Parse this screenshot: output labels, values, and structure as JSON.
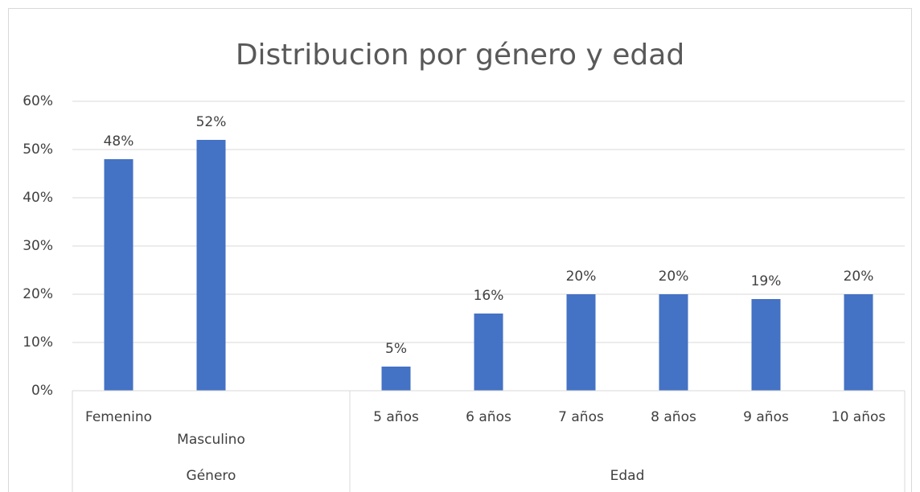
{
  "chart_data": {
    "type": "bar",
    "title": "Distribucion por género y edad",
    "categories": [
      "Femenino",
      "Masculino",
      null,
      "5 años",
      "6 años",
      "7 años",
      "8 años",
      "9 años",
      "10 años"
    ],
    "groups": [
      {
        "name": "Género",
        "span": 3
      },
      {
        "name": "Edad",
        "span": 6
      }
    ],
    "values": [
      48,
      52,
      null,
      5,
      16,
      20,
      20,
      19,
      20
    ],
    "value_labels": [
      "48%",
      "52%",
      null,
      "5%",
      "16%",
      "20%",
      "20%",
      "19%",
      "20%"
    ],
    "color": "#4472c4",
    "ylim": [
      0,
      60
    ],
    "yticks": [
      {
        "value": 0,
        "label": "0%"
      },
      {
        "value": 10,
        "label": "10%"
      },
      {
        "value": 20,
        "label": "20%"
      },
      {
        "value": 30,
        "label": "30%"
      },
      {
        "value": 40,
        "label": "40%"
      },
      {
        "value": 50,
        "label": "50%"
      },
      {
        "value": 60,
        "label": "60%"
      }
    ],
    "grid": true
  }
}
